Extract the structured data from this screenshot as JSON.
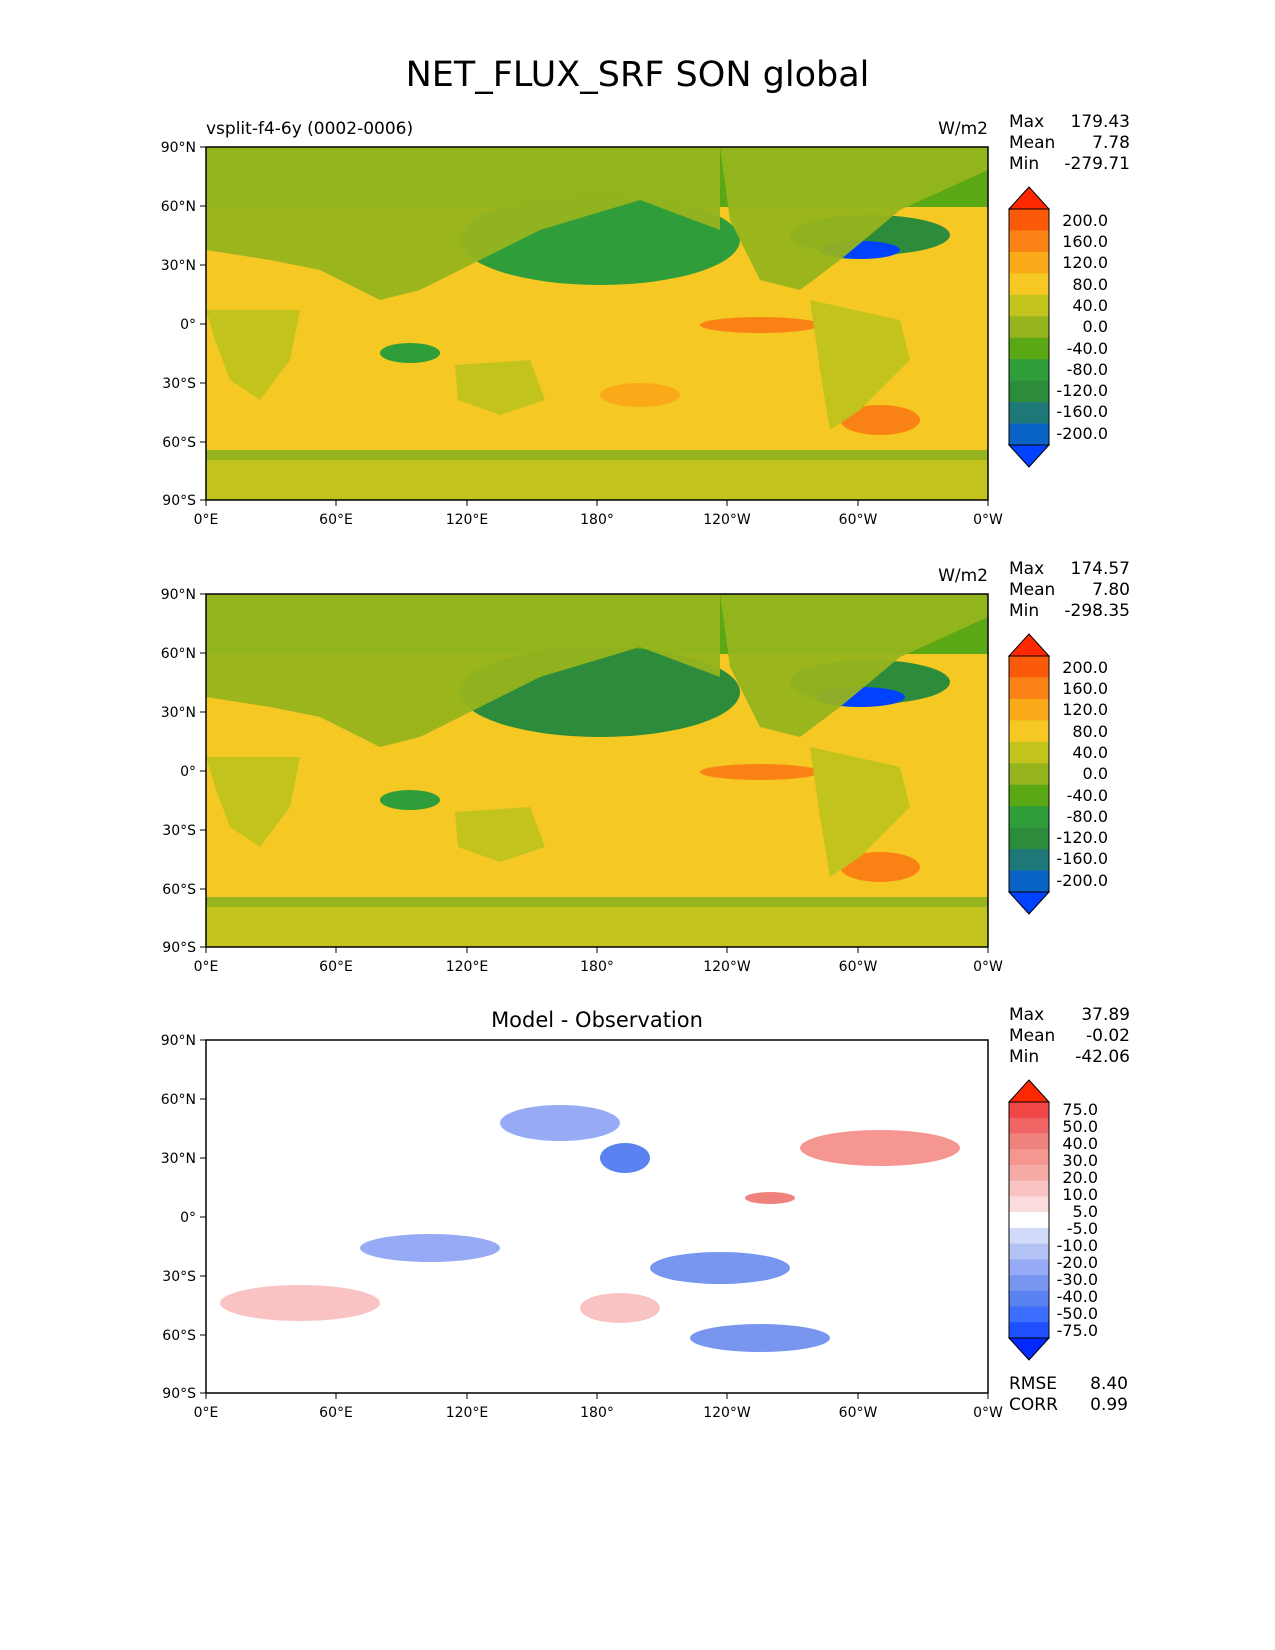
{
  "title": "NET_FLUX_SRF SON global",
  "lat_ticks": [
    "90°N",
    "60°N",
    "30°N",
    "0°",
    "30°S",
    "60°S",
    "90°S"
  ],
  "lon_ticks": [
    "0°E",
    "60°E",
    "120°E",
    "180°",
    "120°W",
    "60°W",
    "0°W"
  ],
  "stat_labels": {
    "max": "Max",
    "mean": "Mean",
    "min": "Min",
    "rmse": "RMSE",
    "corr": "CORR"
  },
  "colors": {
    "flux_scale": [
      "#0042ff",
      "#0a64c8",
      "#1f7878",
      "#2d8c3c",
      "#2f9e3a",
      "#5aa814",
      "#96b41e",
      "#c3c31e",
      "#f5c823",
      "#faaa19",
      "#fa8214",
      "#fa5a0a",
      "#ff2800"
    ],
    "diff_scale": [
      "#0028ff",
      "#1e50ff",
      "#3c6eff",
      "#5a82f0",
      "#7896f0",
      "#96aaf5",
      "#b4c3f5",
      "#d2dcfa",
      "#ffffff",
      "#fadcdc",
      "#fac3c3",
      "#f5aaa5",
      "#f59691",
      "#f0827d",
      "#f06464",
      "#f04646",
      "#ff2800"
    ],
    "land_flux": "#96b41e",
    "land_diff": "#ffffff"
  },
  "chart_data": [
    {
      "type": "heatmap",
      "name": "test",
      "subtitle_left": "vsplit-f4-6y (0002-0006)",
      "units": "W/m2",
      "stats": {
        "max": "179.43",
        "mean": "7.78",
        "min": "-279.71"
      },
      "colorbar_labels": [
        "200.0",
        "160.0",
        "120.0",
        "80.0",
        "40.0",
        "0.0",
        "-40.0",
        "-80.0",
        "-120.0",
        "-160.0",
        "-200.0"
      ],
      "levels": [
        -200,
        -160,
        -120,
        -80,
        -40,
        0,
        40,
        80,
        120,
        160,
        200
      ],
      "xlim": [
        0,
        360
      ],
      "ylim": [
        -90,
        90
      ]
    },
    {
      "type": "heatmap",
      "name": "reference",
      "subtitle_left": "",
      "units": "W/m2",
      "stats": {
        "max": "174.57",
        "mean": "7.80",
        "min": "-298.35"
      },
      "colorbar_labels": [
        "200.0",
        "160.0",
        "120.0",
        "80.0",
        "40.0",
        "0.0",
        "-40.0",
        "-80.0",
        "-120.0",
        "-160.0",
        "-200.0"
      ],
      "levels": [
        -200,
        -160,
        -120,
        -80,
        -40,
        0,
        40,
        80,
        120,
        160,
        200
      ],
      "xlim": [
        0,
        360
      ],
      "ylim": [
        -90,
        90
      ]
    },
    {
      "type": "heatmap",
      "name": "difference",
      "subtitle_center": "Model - Observation",
      "units": "",
      "stats": {
        "max": "37.89",
        "mean": "-0.02",
        "min": "-42.06"
      },
      "colorbar_labels": [
        "75.0",
        "50.0",
        "40.0",
        "30.0",
        "20.0",
        "10.0",
        "5.0",
        "-5.0",
        "-10.0",
        "-20.0",
        "-30.0",
        "-40.0",
        "-50.0",
        "-75.0"
      ],
      "levels": [
        -75,
        -50,
        -40,
        -30,
        -20,
        -10,
        -5,
        5,
        10,
        20,
        30,
        40,
        50,
        75
      ],
      "rmse": "8.40",
      "corr": "0.99",
      "xlim": [
        0,
        360
      ],
      "ylim": [
        -90,
        90
      ]
    }
  ]
}
